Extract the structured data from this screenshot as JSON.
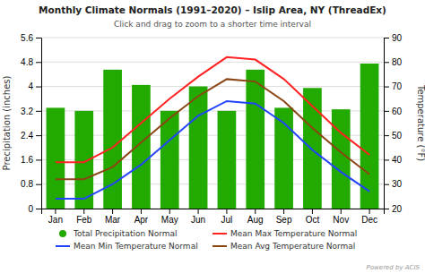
{
  "chart_data": {
    "type": "bar",
    "title": "Monthly Climate Normals (1991–2020) – Islip Area, NY (ThreadEx)",
    "subtitle": "Click and drag to zoom to a shorter time interval",
    "categories": [
      "Jan",
      "Feb",
      "Mar",
      "Apr",
      "May",
      "Jun",
      "Jul",
      "Aug",
      "Sep",
      "Oct",
      "Nov",
      "Dec"
    ],
    "series": [
      {
        "name": "Total Precipitation Normal",
        "type": "bar",
        "color": "#22aa00",
        "marker": "circle",
        "values": [
          3.3,
          3.2,
          4.55,
          4.05,
          3.2,
          4.0,
          3.2,
          4.55,
          3.3,
          3.95,
          3.25,
          4.75
        ]
      },
      {
        "name": "Mean Max Temperature Normal",
        "type": "line",
        "axis": "y2",
        "color": "#ff2222",
        "values": [
          39,
          39,
          45,
          55,
          65,
          74,
          82,
          81,
          73,
          62,
          51,
          42
        ]
      },
      {
        "name": "Mean Min Temperature Normal",
        "type": "line",
        "axis": "y2",
        "color": "#2244ff",
        "values": [
          24,
          24,
          30,
          38,
          48,
          58,
          64,
          63,
          55,
          44,
          35,
          27
        ]
      },
      {
        "name": "Mean Avg Temperature Normal",
        "type": "line",
        "axis": "y2",
        "color": "#8B4513",
        "values": [
          32,
          32,
          37,
          47,
          57,
          66,
          73,
          72,
          64,
          53,
          43,
          34
        ]
      }
    ],
    "ylabel": "Precipitation (inches)",
    "y2label": "Temperature (°F)",
    "ylim": [
      0,
      5.6
    ],
    "yticks": [
      0,
      0.8,
      1.6,
      2.4,
      3.2,
      4,
      4.8,
      5.6
    ],
    "y2lim": [
      20,
      90
    ],
    "y2ticks": [
      20,
      30,
      40,
      50,
      60,
      70,
      80,
      90
    ],
    "grid": true,
    "legend": "bottom",
    "annotations": [
      "Powered by ACIS"
    ]
  }
}
